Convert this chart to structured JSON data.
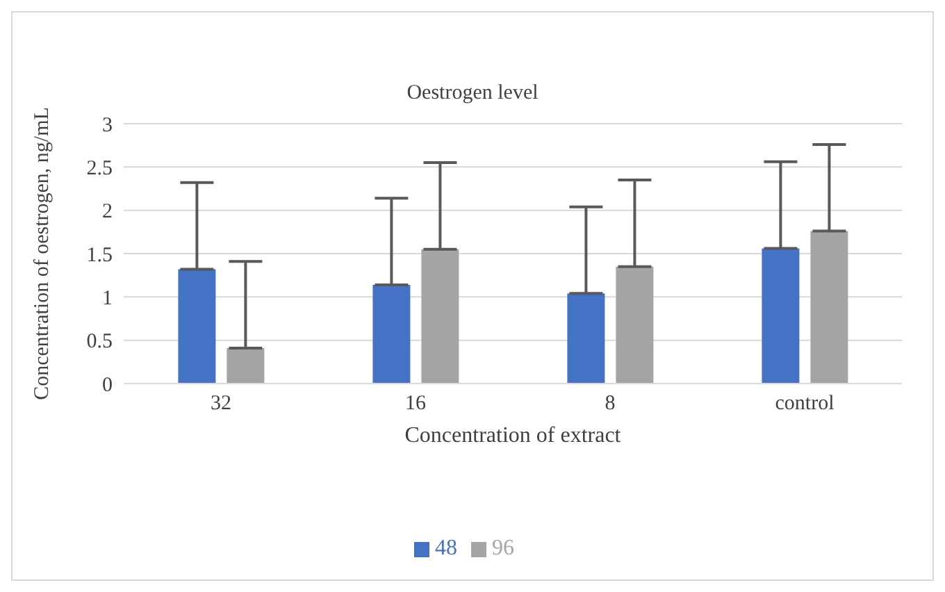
{
  "chart_data": {
    "type": "bar",
    "title": "Oestrogen level",
    "xlabel": "Concentration of extract",
    "ylabel": "Concentration of oestrogen, ng/mL",
    "categories": [
      "32",
      "16",
      "8",
      "control"
    ],
    "series": [
      {
        "name": "48",
        "color": "#4472c4",
        "values": [
          1.32,
          1.14,
          1.04,
          1.56
        ],
        "errors": [
          [
            1.32,
            2.32
          ],
          [
            1.14,
            2.14
          ],
          [
            1.04,
            2.04
          ],
          [
            1.56,
            2.56
          ]
        ]
      },
      {
        "name": "96",
        "color": "#a5a5a5",
        "values": [
          0.41,
          1.55,
          1.35,
          1.76
        ],
        "errors": [
          [
            0.41,
            1.41
          ],
          [
            1.55,
            2.55
          ],
          [
            1.35,
            2.35
          ],
          [
            1.76,
            2.76
          ]
        ]
      }
    ],
    "ylim": [
      0,
      3
    ],
    "yticks": [
      0,
      0.5,
      1,
      1.5,
      2,
      2.5,
      3
    ],
    "grid": "y",
    "legend": "bottom"
  }
}
